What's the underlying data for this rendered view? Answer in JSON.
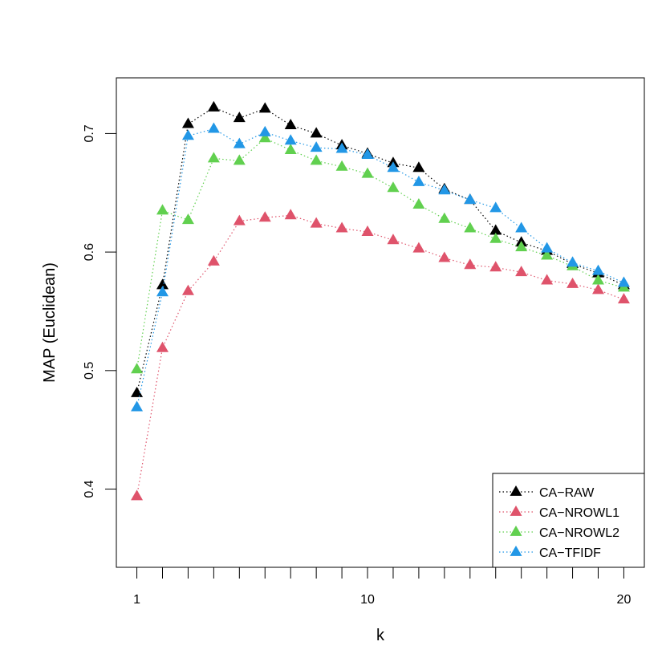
{
  "chart_data": {
    "type": "line",
    "xlabel": "k",
    "ylabel": "MAP (Euclidean)",
    "x": [
      1,
      2,
      3,
      4,
      5,
      6,
      7,
      8,
      9,
      10,
      11,
      12,
      13,
      14,
      15,
      16,
      17,
      18,
      19,
      20
    ],
    "x_tick_labels": [
      {
        "x": 1,
        "label": "1"
      },
      {
        "x": 10,
        "label": "10"
      },
      {
        "x": 20,
        "label": "20"
      }
    ],
    "x_minor_ticks": [
      1,
      2,
      3,
      4,
      5,
      6,
      7,
      8,
      9,
      10,
      11,
      12,
      13,
      14,
      15,
      16,
      17,
      18,
      19,
      20
    ],
    "y_ticks": [
      0.4,
      0.5,
      0.6,
      0.7
    ],
    "y_tick_labels": [
      "0.4",
      "0.5",
      "0.6",
      "0.7"
    ],
    "xlim": [
      0.2,
      20.8
    ],
    "ylim": [
      0.334,
      0.747
    ],
    "grid": false,
    "legend_position": "bottom-right",
    "series": [
      {
        "name": "CA−RAW",
        "color": "#000000",
        "values": [
          0.481,
          0.572,
          0.708,
          0.722,
          0.713,
          0.721,
          0.707,
          0.7,
          0.69,
          0.683,
          0.675,
          0.671,
          0.653,
          0.644,
          0.618,
          0.608,
          0.601,
          0.59,
          0.582,
          0.572
        ]
      },
      {
        "name": "CA−NROWL1",
        "color": "#DF536B",
        "values": [
          0.394,
          0.519,
          0.567,
          0.592,
          0.626,
          0.629,
          0.631,
          0.624,
          0.62,
          0.617,
          0.61,
          0.603,
          0.595,
          0.589,
          0.587,
          0.583,
          0.576,
          0.573,
          0.568,
          0.56
        ]
      },
      {
        "name": "CA−NROWL2",
        "color": "#61D04F",
        "values": [
          0.501,
          0.635,
          0.627,
          0.679,
          0.677,
          0.696,
          0.686,
          0.677,
          0.672,
          0.666,
          0.654,
          0.64,
          0.628,
          0.62,
          0.611,
          0.604,
          0.597,
          0.588,
          0.576,
          0.57
        ]
      },
      {
        "name": "CA−TFIDF",
        "color": "#2297E6",
        "values": [
          0.469,
          0.566,
          0.698,
          0.704,
          0.691,
          0.701,
          0.694,
          0.688,
          0.687,
          0.682,
          0.671,
          0.659,
          0.652,
          0.644,
          0.637,
          0.62,
          0.603,
          0.591,
          0.584,
          0.574
        ]
      }
    ]
  }
}
